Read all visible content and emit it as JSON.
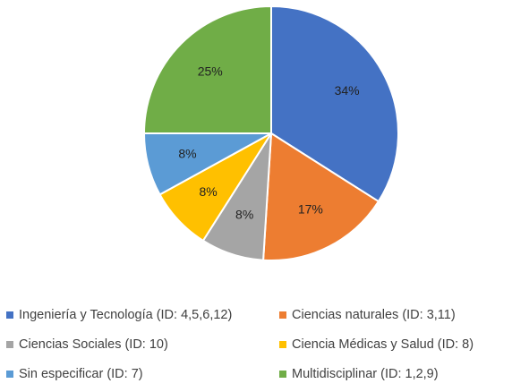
{
  "chart_data": {
    "type": "pie",
    "title": "",
    "start_angle_deg": 0,
    "direction": "clockwise",
    "slices": [
      {
        "label": "Ingeniería y Tecnología (ID: 4,5,6,12)",
        "value": 34,
        "display": "34%",
        "color": "#4472C4"
      },
      {
        "label": "Ciencias naturales (ID: 3,11)",
        "value": 17,
        "display": "17%",
        "color": "#ED7D31"
      },
      {
        "label": "Ciencias Sociales (ID: 10)",
        "value": 8,
        "display": "8%",
        "color": "#A5A5A5"
      },
      {
        "label": "Ciencia Médicas y Salud (ID: 8)",
        "value": 8,
        "display": "8%",
        "color": "#FFC000"
      },
      {
        "label": "Sin especificar (ID: 7)",
        "value": 8,
        "display": "8%",
        "color": "#5B9BD5"
      },
      {
        "label": "Multidisciplinar (ID: 1,2,9)",
        "value": 25,
        "display": "25%",
        "color": "#70AD47"
      }
    ],
    "legend": {
      "placement": "bottom",
      "columns": 2
    }
  }
}
